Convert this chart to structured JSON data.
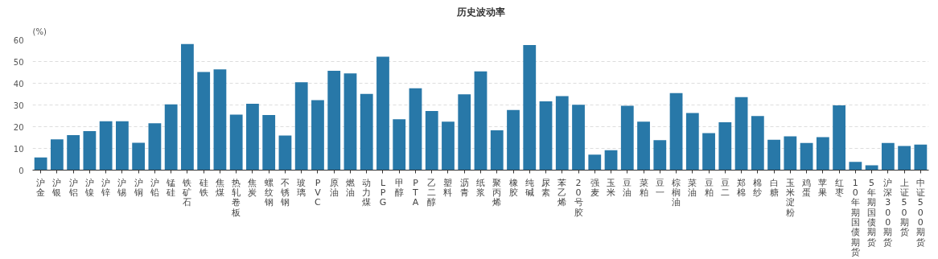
{
  "chart_data": {
    "type": "bar",
    "title": "历史波动率",
    "ylabel": "(%)",
    "categories": [
      "沪金",
      "沪银",
      "沪铝",
      "沪镍",
      "沪锌",
      "沪锡",
      "沪铜",
      "沪铅",
      "锰硅",
      "铁矿石",
      "硅铁",
      "焦煤",
      "热轧卷板",
      "焦炭",
      "螺纹钢",
      "不锈钢",
      "玻璃",
      "PVC",
      "原油",
      "燃油",
      "动力煤",
      "LPG",
      "甲醇",
      "PTA",
      "乙二醇",
      "塑料",
      "沥青",
      "纸浆",
      "聚丙烯",
      "橡胶",
      "纯碱",
      "尿素",
      "苯乙烯",
      "20号胶",
      "强麦",
      "玉米",
      "豆油",
      "菜粕",
      "豆一",
      "棕榈油",
      "菜油",
      "豆粕",
      "豆二",
      "郑棉",
      "棉纱",
      "白糖",
      "玉米淀粉",
      "鸡蛋",
      "苹果",
      "红枣",
      "10年期国债期货",
      "5年期国债期货",
      "沪深300期货",
      "上证50期货",
      "中证500期货"
    ],
    "values": [
      5.8,
      14.2,
      16.1,
      18.0,
      22.5,
      22.5,
      12.6,
      21.6,
      30.3,
      58.1,
      45.2,
      46.4,
      25.6,
      30.6,
      25.4,
      15.9,
      40.5,
      32.2,
      45.7,
      44.5,
      35.1,
      52.2,
      23.4,
      37.7,
      27.2,
      22.3,
      34.9,
      45.5,
      18.3,
      27.7,
      57.6,
      31.7,
      34.1,
      30.1,
      7.1,
      9.2,
      29.6,
      22.3,
      13.8,
      35.5,
      26.3,
      17.0,
      22.0,
      33.6,
      24.9,
      14.0,
      15.6,
      12.5,
      15.2,
      29.8,
      3.8,
      2.2,
      12.5,
      11.1,
      11.8
    ],
    "color": "#2878a8",
    "ylim": [
      0,
      60
    ],
    "yticks": [
      0,
      10,
      20,
      30,
      40,
      50,
      60
    ],
    "grid": "y",
    "legend": false
  }
}
